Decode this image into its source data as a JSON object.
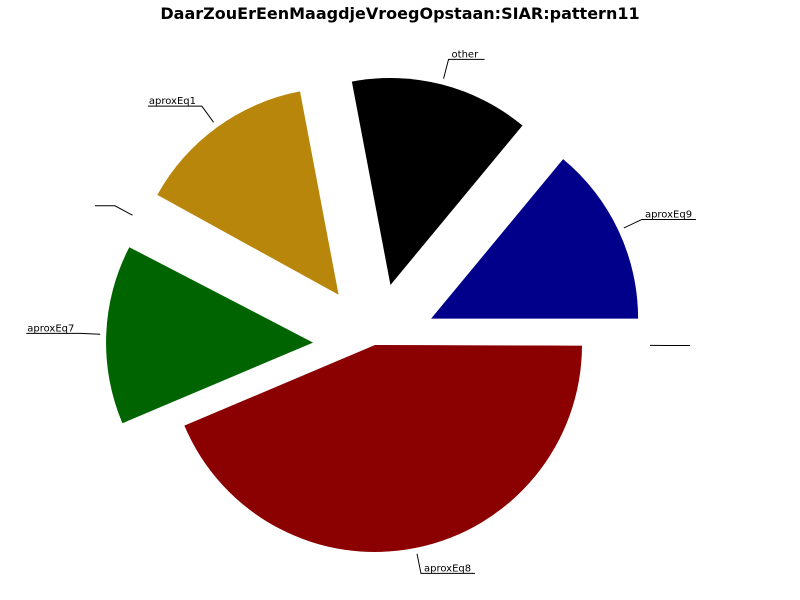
{
  "chart_data": {
    "type": "pie",
    "title": "DaarZouErEenMaagdjeVroegOpstaan:SIAR:pattern11",
    "slices": [
      {
        "label": "aproxEq9",
        "value": 14,
        "color": "#00008b",
        "exploded": true
      },
      {
        "label": "other",
        "value": 14,
        "color": "#000000",
        "exploded": true
      },
      {
        "label": "aproxEq1",
        "value": 14,
        "color": "#b8860b",
        "exploded": true
      },
      {
        "label": "",
        "value": 0.4,
        "color": "#ffffff",
        "exploded": true
      },
      {
        "label": "aproxEq7",
        "value": 14,
        "color": "#006400",
        "exploded": true
      },
      {
        "label": "aproxEq8",
        "value": 43.6,
        "color": "#8b0000",
        "exploded": false
      },
      {
        "label": "",
        "value": 0.05,
        "color": "#ffffff",
        "exploded": true
      }
    ],
    "start_angle_deg": 0,
    "direction": "counterclockwise",
    "legend": "none"
  }
}
